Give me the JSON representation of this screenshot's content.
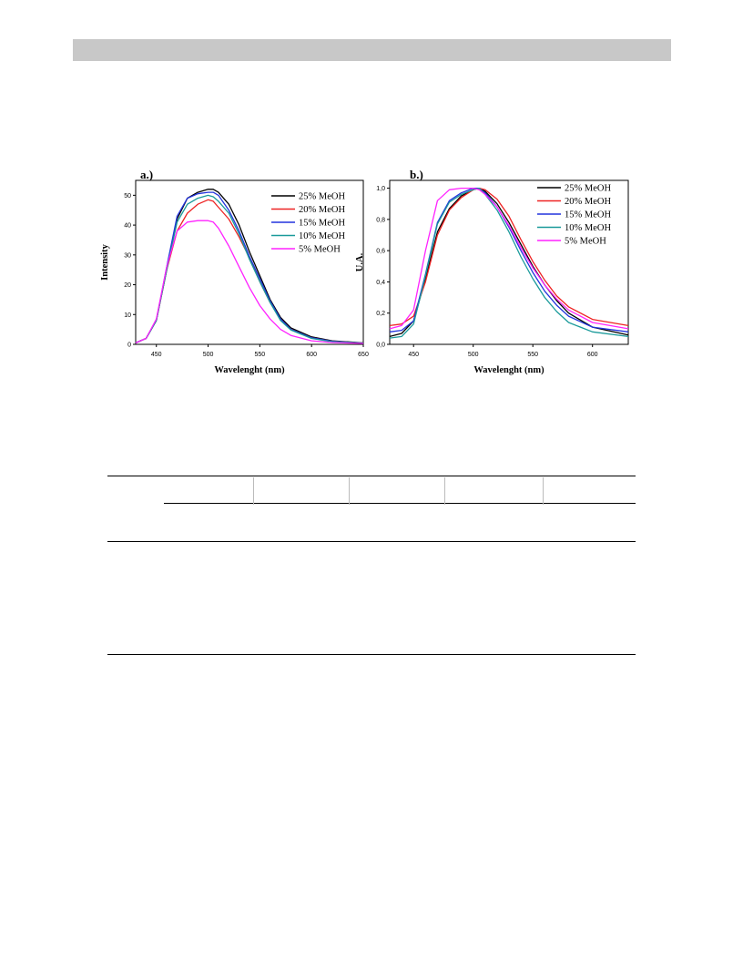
{
  "chart_data": [
    {
      "type": "line",
      "panel_label": "a.)",
      "xlabel": "Wavelenght (nm)",
      "ylabel": "Intensity",
      "xlim": [
        430,
        650
      ],
      "ylim": [
        0,
        55
      ],
      "xticks": [
        450,
        500,
        550,
        600,
        650
      ],
      "yticks": [
        0,
        10,
        20,
        30,
        40,
        50
      ],
      "ytick_labels": [
        "0",
        "10",
        "20",
        "30",
        "40",
        "50"
      ],
      "legend_position": "top-right",
      "series": [
        {
          "name": "25% MeOH",
          "color": "#000000",
          "x": [
            430,
            440,
            450,
            460,
            470,
            480,
            490,
            500,
            505,
            510,
            520,
            530,
            540,
            550,
            560,
            570,
            580,
            600,
            620,
            650
          ],
          "y": [
            0.5,
            2,
            8,
            25,
            42,
            49,
            51,
            52,
            52,
            51,
            47,
            40,
            31,
            23,
            15,
            9,
            5.5,
            2.5,
            1.2,
            0.5
          ]
        },
        {
          "name": "20% MeOH",
          "color": "#ee2222",
          "x": [
            430,
            440,
            450,
            460,
            470,
            480,
            490,
            500,
            505,
            510,
            520,
            530,
            540,
            550,
            560,
            570,
            580,
            600,
            620,
            650
          ],
          "y": [
            0.5,
            2,
            8,
            25,
            38,
            44,
            47,
            48.5,
            48,
            46,
            42,
            36,
            29,
            21,
            14,
            8.5,
            5,
            2.2,
            1,
            0.4
          ]
        },
        {
          "name": "15% MeOH",
          "color": "#2233dd",
          "x": [
            430,
            440,
            450,
            460,
            470,
            480,
            490,
            500,
            505,
            510,
            520,
            530,
            540,
            550,
            560,
            570,
            580,
            600,
            620,
            650
          ],
          "y": [
            0.5,
            2,
            8,
            26,
            43,
            49,
            50.5,
            51,
            51,
            50,
            45,
            38,
            29.5,
            22,
            14.5,
            8.5,
            5,
            2.2,
            1,
            0.4
          ]
        },
        {
          "name": "10% MeOH",
          "color": "#1a9a9a",
          "x": [
            430,
            440,
            450,
            460,
            470,
            480,
            490,
            500,
            505,
            510,
            520,
            530,
            540,
            550,
            560,
            570,
            580,
            600,
            620,
            650
          ],
          "y": [
            0.5,
            2,
            8,
            25,
            41,
            47,
            49,
            50,
            49.5,
            48,
            44,
            37,
            28.5,
            21,
            14,
            8,
            4.8,
            2,
            0.9,
            0.4
          ]
        },
        {
          "name": "5% MeOH",
          "color": "#ff22ff",
          "x": [
            430,
            440,
            450,
            460,
            470,
            480,
            490,
            500,
            505,
            510,
            520,
            530,
            540,
            550,
            560,
            570,
            580,
            600,
            620,
            650
          ],
          "y": [
            0.5,
            2,
            8.5,
            26,
            38,
            41,
            41.5,
            41.5,
            41,
            39,
            33,
            26,
            19,
            13,
            8.5,
            5,
            3,
            1.2,
            0.6,
            0.3
          ]
        }
      ]
    },
    {
      "type": "line",
      "panel_label": "b.)",
      "xlabel": "Wavelenght (nm)",
      "ylabel": "U.A.",
      "xlim": [
        430,
        630
      ],
      "ylim": [
        0,
        1.05
      ],
      "xticks": [
        450,
        500,
        550,
        600
      ],
      "yticks": [
        0,
        0.2,
        0.4,
        0.6,
        0.8,
        1.0
      ],
      "ytick_labels": [
        "0,0",
        "0,2",
        "0,4",
        "0,6",
        "0,8",
        "1,0"
      ],
      "legend_position": "top-right",
      "series": [
        {
          "name": "25% MeOH",
          "color": "#000000",
          "x": [
            430,
            440,
            450,
            460,
            470,
            480,
            490,
            500,
            505,
            510,
            520,
            530,
            540,
            550,
            560,
            570,
            580,
            600,
            630
          ],
          "y": [
            0.05,
            0.07,
            0.15,
            0.42,
            0.72,
            0.87,
            0.95,
            0.99,
            1.0,
            0.98,
            0.9,
            0.78,
            0.64,
            0.5,
            0.38,
            0.28,
            0.2,
            0.11,
            0.06
          ]
        },
        {
          "name": "20% MeOH",
          "color": "#ee2222",
          "x": [
            430,
            440,
            450,
            460,
            470,
            480,
            490,
            500,
            505,
            510,
            520,
            530,
            540,
            550,
            560,
            570,
            580,
            600,
            630
          ],
          "y": [
            0.12,
            0.13,
            0.18,
            0.4,
            0.7,
            0.86,
            0.94,
            0.99,
            1.0,
            0.99,
            0.93,
            0.82,
            0.67,
            0.53,
            0.41,
            0.31,
            0.24,
            0.16,
            0.12
          ]
        },
        {
          "name": "15% MeOH",
          "color": "#2233dd",
          "x": [
            430,
            440,
            450,
            460,
            470,
            480,
            490,
            500,
            505,
            510,
            520,
            530,
            540,
            550,
            560,
            570,
            580,
            600,
            630
          ],
          "y": [
            0.08,
            0.09,
            0.15,
            0.45,
            0.78,
            0.92,
            0.97,
            1.0,
            1.0,
            0.97,
            0.88,
            0.75,
            0.6,
            0.46,
            0.34,
            0.25,
            0.18,
            0.11,
            0.08
          ]
        },
        {
          "name": "10% MeOH",
          "color": "#1a9a9a",
          "x": [
            430,
            440,
            450,
            460,
            470,
            480,
            490,
            500,
            505,
            510,
            520,
            530,
            540,
            550,
            560,
            570,
            580,
            600,
            630
          ],
          "y": [
            0.04,
            0.05,
            0.13,
            0.44,
            0.77,
            0.91,
            0.96,
            0.99,
            1.0,
            0.96,
            0.86,
            0.72,
            0.56,
            0.42,
            0.3,
            0.21,
            0.14,
            0.08,
            0.05
          ]
        },
        {
          "name": "5% MeOH",
          "color": "#ff22ff",
          "x": [
            430,
            440,
            450,
            460,
            470,
            480,
            490,
            500,
            505,
            510,
            520,
            530,
            540,
            550,
            560,
            570,
            580,
            600,
            630
          ],
          "y": [
            0.1,
            0.12,
            0.22,
            0.6,
            0.92,
            0.99,
            1.0,
            1.0,
            0.99,
            0.96,
            0.88,
            0.76,
            0.62,
            0.49,
            0.38,
            0.29,
            0.22,
            0.14,
            0.1
          ]
        }
      ]
    }
  ]
}
